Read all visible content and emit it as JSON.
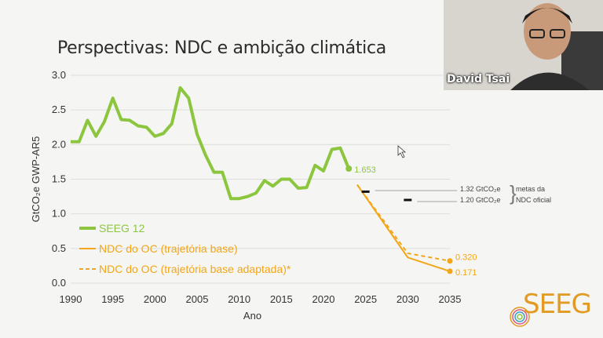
{
  "slide": {
    "title": "Perspectivas: NDC e ambição climática"
  },
  "webcam": {
    "presenter_name": "David Tsai"
  },
  "logo": {
    "text": "SEEG"
  },
  "annotations": {
    "target1": "1.32 GtCO₂e",
    "target2": "1.20 GtCO₂e",
    "bracket_label1": "metas da",
    "bracket_label2": "NDC oficial"
  },
  "colors": {
    "green": "#8cc63f",
    "orange": "#f2a618",
    "background": "#f5f5f3"
  },
  "chart_data": {
    "type": "line",
    "xlabel": "Ano",
    "ylabel": "GtCO₂e GWP-AR5",
    "xlim": [
      1990,
      2035
    ],
    "ylim": [
      0,
      3.0
    ],
    "xticks": [
      "1990",
      "1995",
      "2000",
      "2005",
      "2010",
      "2015",
      "2020",
      "2025",
      "2030",
      "2035"
    ],
    "yticks": [
      "0.0",
      "0.5",
      "1.0",
      "1.5",
      "2.0",
      "2.5",
      "3.0"
    ],
    "grid": "horizontal",
    "legend_position": "bottom-left",
    "series": [
      {
        "name": "SEEG 12",
        "color": "#8cc63f",
        "style": "solid",
        "x": [
          1990,
          1991,
          1992,
          1993,
          1994,
          1995,
          1996,
          1997,
          1998,
          1999,
          2000,
          2001,
          2002,
          2003,
          2004,
          2005,
          2006,
          2007,
          2008,
          2009,
          2010,
          2011,
          2012,
          2013,
          2014,
          2015,
          2016,
          2017,
          2018,
          2019,
          2020,
          2021,
          2022,
          2023
        ],
        "y": [
          2.04,
          2.04,
          2.35,
          2.12,
          2.33,
          2.67,
          2.36,
          2.35,
          2.27,
          2.25,
          2.12,
          2.16,
          2.3,
          2.82,
          2.67,
          2.15,
          1.85,
          1.6,
          1.6,
          1.22,
          1.22,
          1.25,
          1.3,
          1.48,
          1.4,
          1.5,
          1.5,
          1.37,
          1.38,
          1.7,
          1.62,
          1.93,
          1.95,
          1.653
        ],
        "end_label": "1.653"
      },
      {
        "name": "NDC do OC (trajetória base)",
        "color": "#f2a618",
        "style": "solid",
        "x": [
          2024,
          2030,
          2035
        ],
        "y": [
          1.42,
          0.37,
          0.171
        ],
        "end_label": "0.171"
      },
      {
        "name": "NDC do OC (trajetória base adaptada)*",
        "color": "#f2a618",
        "style": "dashed",
        "x": [
          2024,
          2030,
          2035
        ],
        "y": [
          1.42,
          0.43,
          0.32
        ],
        "end_label": "0.320"
      }
    ],
    "targets": [
      {
        "x": 2025,
        "y": 1.32
      },
      {
        "x": 2030,
        "y": 1.2
      }
    ]
  }
}
